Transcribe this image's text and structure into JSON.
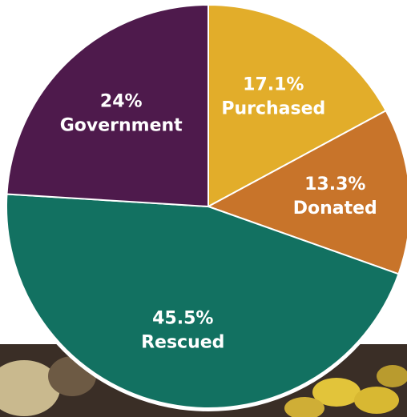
{
  "chart_data": {
    "type": "pie",
    "categories": [
      "Purchased",
      "Donated",
      "Rescued",
      "Government"
    ],
    "values": [
      17.1,
      13.3,
      45.5,
      24
    ],
    "value_labels": [
      "17.1%",
      "13.3%",
      "45.5%",
      "24%"
    ],
    "colors": [
      "#e2ad2a",
      "#c8742a",
      "#127161",
      "#4e1a4c"
    ]
  }
}
